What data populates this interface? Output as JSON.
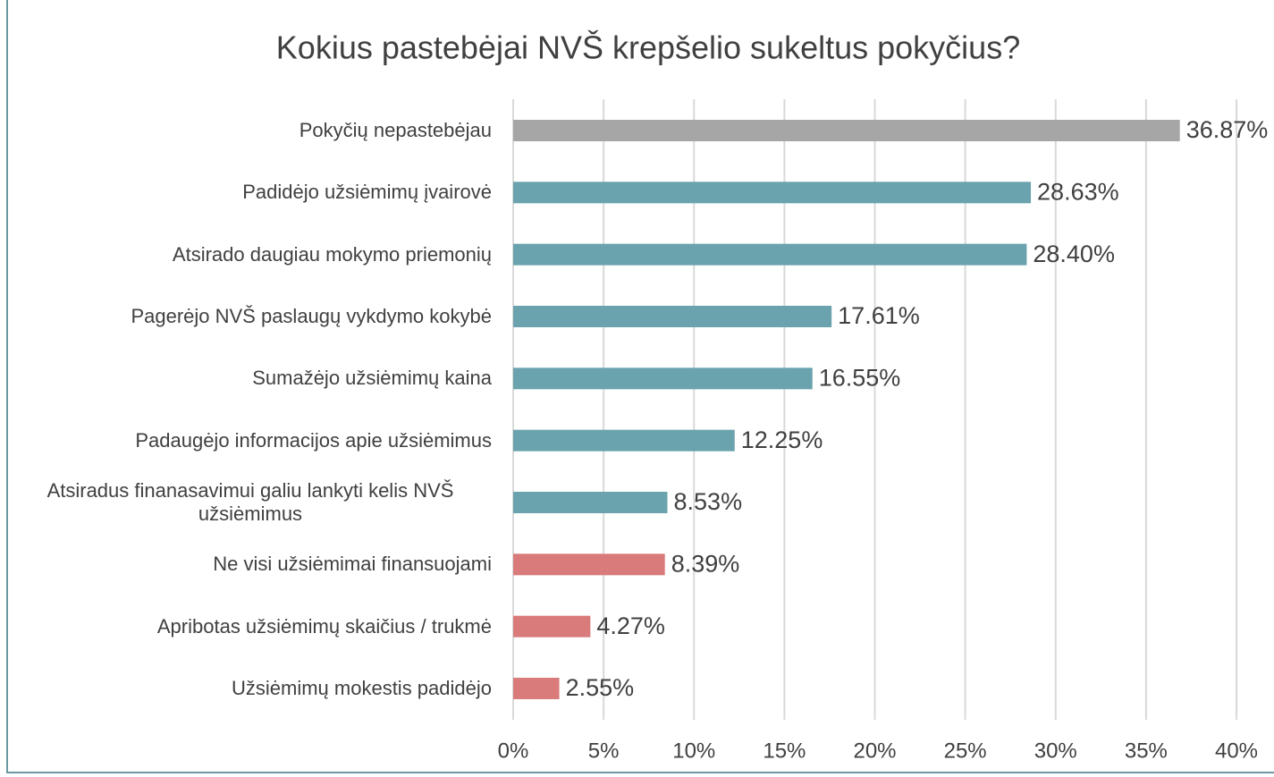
{
  "chart_data": {
    "type": "bar",
    "orientation": "horizontal",
    "title": "Kokius pastebėjai NVŠ krepšelio sukeltus pokyčius?",
    "categories": [
      "Pokyčių nepastebėjau",
      "Padidėjo užsiėmimų įvairovė",
      "Atsirado daugiau mokymo priemonių",
      "Pagerėjo NVŠ paslaugų vykdymo kokybė",
      "Sumažėjo užsiėmimų kaina",
      "Padaugėjo informacijos apie užsiėmimus",
      "Atsiradus finanasavimui galiu lankyti kelis NVŠ užsiėmimus",
      "Ne visi užsiėmimai finansuojami",
      "Apribotas užsiėmimų skaičius / trukmė",
      "Užsiėmimų mokestis padidėjo"
    ],
    "values": [
      36.87,
      28.63,
      28.4,
      17.61,
      16.55,
      12.25,
      8.53,
      8.39,
      4.27,
      2.55
    ],
    "value_labels": [
      "36.87%",
      "28.63%",
      "28.40%",
      "17.61%",
      "16.55%",
      "12.25%",
      "8.53%",
      "8.39%",
      "4.27%",
      "2.55%"
    ],
    "colors": [
      "#a6a6a6",
      "#6aa3ad",
      "#6aa3ad",
      "#6aa3ad",
      "#6aa3ad",
      "#6aa3ad",
      "#6aa3ad",
      "#d97b7b",
      "#d97b7b",
      "#d97b7b"
    ],
    "xlim": [
      0,
      40
    ],
    "xticks": [
      {
        "value": 0,
        "label": "0%"
      },
      {
        "value": 5,
        "label": "5%"
      },
      {
        "value": 10,
        "label": "10%"
      },
      {
        "value": 15,
        "label": "15%"
      },
      {
        "value": 20,
        "label": "20%"
      },
      {
        "value": 25,
        "label": "25%"
      },
      {
        "value": 30,
        "label": "30%"
      },
      {
        "value": 35,
        "label": "35%"
      },
      {
        "value": 40,
        "label": "40%"
      }
    ],
    "grid": true
  }
}
